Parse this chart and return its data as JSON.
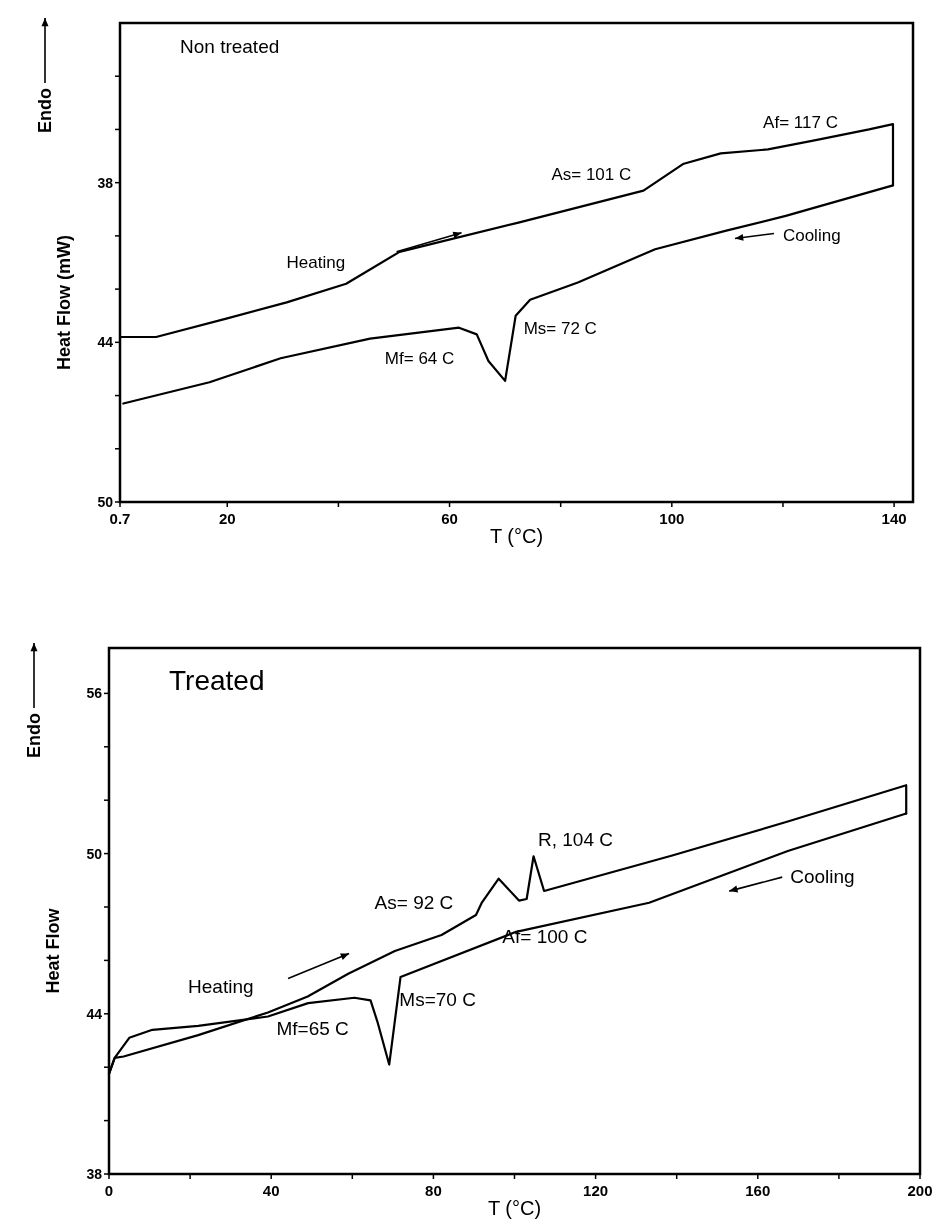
{
  "chart_data": [
    {
      "type": "line",
      "title": "Non treated",
      "xlabel": "T (°C)",
      "ylabel": "Heat Flow (mW)",
      "xlim": [
        0.7,
        143.4
      ],
      "ylim": [
        50,
        32
      ],
      "xticks": [
        0.7,
        20,
        {
          "value": 40,
          "label": null
        },
        60,
        {
          "value": 80,
          "label": null
        },
        100,
        {
          "value": 120,
          "label": null
        },
        140
      ],
      "yticks": [
        {
          "value": 34,
          "label": null
        },
        {
          "value": 36,
          "label": null
        },
        38,
        {
          "value": 40,
          "label": null
        },
        {
          "value": 42,
          "label": null
        },
        44,
        {
          "value": 46,
          "label": null
        },
        {
          "value": 48,
          "label": null
        },
        50
      ],
      "grid": false,
      "series": [
        {
          "color": "#000000",
          "x": [
            0.7,
            7.2,
            20,
            30.7,
            41.4,
            51,
            72.4,
            94.9,
            102,
            108.8,
            117.3,
            125.9,
            135.5,
            139.8,
            139.8
          ],
          "values": [
            43.8,
            43.8,
            43.1,
            42.5,
            41.8,
            40.6,
            39.5,
            38.3,
            37.3,
            36.9,
            36.75,
            36.4,
            36,
            35.8,
            38.1
          ]
        },
        {
          "color": "#000000",
          "x": [
            139.8,
            120.5,
            109.8,
            97,
            83.1,
            74.5,
            71.9,
            70,
            67,
            64.9,
            61.7,
            45.7,
            29.6,
            16.8,
            1.3
          ],
          "values": [
            38.1,
            39.25,
            39.8,
            40.5,
            41.75,
            42.4,
            43,
            45.45,
            44.7,
            43.7,
            43.45,
            43.86,
            44.6,
            45.5,
            46.3
          ]
        }
      ],
      "annotations": [
        "Endo",
        "Heating",
        "Cooling",
        "As= 101 C",
        "Af= 117 C",
        "Mf= 64 C",
        "Ms= 72 C"
      ]
    },
    {
      "type": "line",
      "title": "Treated",
      "xlabel": "T (°C)",
      "ylabel": "Heat Flow",
      "xlim": [
        0,
        200
      ],
      "ylim": [
        38,
        57.7
      ],
      "xticks": [
        0,
        {
          "value": 20,
          "label": null
        },
        40,
        {
          "value": 60,
          "label": null
        },
        80,
        {
          "value": 100,
          "label": null
        },
        120,
        {
          "value": 140,
          "label": null
        },
        160,
        {
          "value": 180,
          "label": null
        },
        200
      ],
      "yticks": [
        38,
        {
          "value": 40,
          "label": null
        },
        {
          "value": 42,
          "label": null
        },
        44,
        {
          "value": 46,
          "label": null
        },
        {
          "value": 48,
          "label": null
        },
        50,
        {
          "value": 52,
          "label": null
        },
        {
          "value": 54,
          "label": null
        },
        56
      ],
      "grid": false,
      "series": [
        {
          "color": "#000000",
          "x": [
            0,
            1.4,
            3.6,
            22,
            39.2,
            49,
            59,
            70.5,
            82,
            90.5,
            91.9,
            96.1,
            101.1,
            103,
            104.7,
            107.3,
            138.9,
            167.4,
            196.6,
            196.6
          ],
          "values": [
            41.75,
            42.35,
            42.4,
            43.2,
            44.05,
            44.65,
            45.5,
            46.35,
            46.95,
            47.7,
            48.15,
            49.06,
            48.24,
            48.3,
            49.9,
            48.6,
            49.93,
            51.2,
            52.56,
            51.5
          ]
        },
        {
          "color": "#000000",
          "x": [
            196.6,
            167.4,
            133.2,
            100.4,
            71.9,
            69.1,
            66.2,
            64.5,
            60.5,
            49.1,
            39.2,
            22,
            10.7,
            5,
            1.4,
            0
          ],
          "values": [
            51.5,
            50.1,
            48.16,
            47.07,
            45.38,
            42.1,
            43.7,
            44.5,
            44.6,
            44.4,
            43.9,
            43.55,
            43.4,
            43.1,
            42.35,
            41.75
          ]
        }
      ],
      "annotations": [
        "Endo",
        "Heating",
        "Cooling",
        "As= 92 C",
        "Af= 100 C",
        "R, 104 C",
        "Mf=65 C",
        "Ms=70 C"
      ]
    }
  ]
}
